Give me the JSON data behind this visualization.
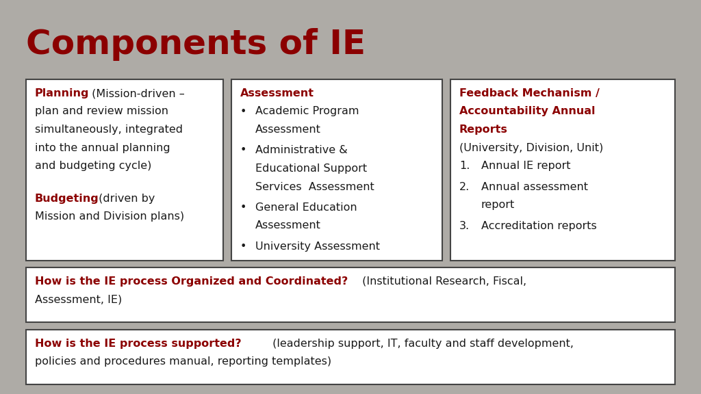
{
  "title": "Components of IE",
  "title_color": "#8B0000",
  "bg_color": "#AEABA6",
  "dark_red": "#8B0000",
  "black": "#1a1a1a",
  "box1_lines": [
    {
      "bold": "Planning",
      "normal": " (Mission-driven –"
    },
    {
      "bold": "",
      "normal": "plan and review mission"
    },
    {
      "bold": "",
      "normal": "simultaneously, integrated"
    },
    {
      "bold": "",
      "normal": "into the annual planning"
    },
    {
      "bold": "",
      "normal": "and budgeting cycle)"
    },
    {
      "bold": "",
      "normal": ""
    },
    {
      "bold": "Budgeting",
      "normal": " (driven by"
    },
    {
      "bold": "",
      "normal": "Mission and Division plans)"
    }
  ],
  "box2_header": "Assessment",
  "box2_bullets": [
    [
      "Academic Program",
      "Assessment"
    ],
    [
      "Administrative &",
      "Educational Support",
      "Services  Assessment"
    ],
    [
      "General Education",
      "Assessment"
    ],
    [
      "University Assessment"
    ]
  ],
  "box3_header_lines": [
    "Feedback Mechanism /",
    "Accountability Annual",
    "Reports"
  ],
  "box3_sub": "(University, Division, Unit)",
  "box3_numbered": [
    [
      "Annual IE report"
    ],
    [
      "Annual assessment",
      "report"
    ],
    [
      "Accreditation reports"
    ]
  ],
  "bottom1_bold": "How is the IE process Organized and Coordinated?",
  "bottom1_normal": " (Institutional Research, Fiscal,",
  "bottom1_line2": "Assessment, IE)",
  "bottom2_bold": "How is the IE process supported?",
  "bottom2_normal": " (leadership support, IT, faculty and staff development,",
  "bottom2_line2": "policies and procedures manual, reporting templates)"
}
